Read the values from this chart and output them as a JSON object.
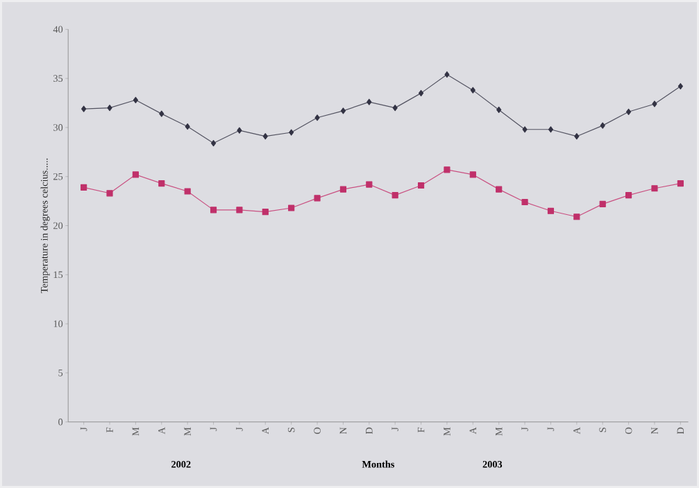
{
  "chart_data": {
    "type": "line",
    "xlabel": "Months",
    "ylabel": "Temperature in degrees celcius.....",
    "categories": [
      "J",
      "F",
      "M",
      "A",
      "M",
      "J",
      "J",
      "A",
      "S",
      "O",
      "N",
      "D",
      "J",
      "F",
      "M",
      "A",
      "M",
      "J",
      "J",
      "A",
      "S",
      "O",
      "N",
      "D"
    ],
    "series": [
      {
        "color": "#333344",
        "marker": "diamond",
        "values": [
          31.9,
          32.0,
          32.8,
          31.4,
          30.1,
          28.4,
          29.7,
          29.1,
          29.5,
          31.0,
          31.7,
          32.6,
          32.0,
          33.5,
          35.4,
          33.8,
          31.8,
          29.8,
          29.8,
          29.1,
          30.2,
          31.6,
          32.4,
          34.2
        ]
      },
      {
        "color": "#c0306a",
        "marker": "square",
        "values": [
          23.9,
          23.3,
          25.2,
          24.3,
          23.5,
          21.6,
          21.6,
          21.4,
          21.8,
          22.8,
          23.7,
          24.2,
          23.1,
          24.1,
          25.7,
          25.2,
          23.7,
          22.4,
          21.5,
          20.9,
          22.2,
          23.1,
          23.8,
          24.3
        ]
      }
    ],
    "ylim": [
      0,
      40
    ],
    "yticks": [
      0,
      5,
      10,
      15,
      20,
      25,
      30,
      35,
      40
    ],
    "grid": false,
    "annotations": [
      "2002",
      "2003"
    ]
  }
}
